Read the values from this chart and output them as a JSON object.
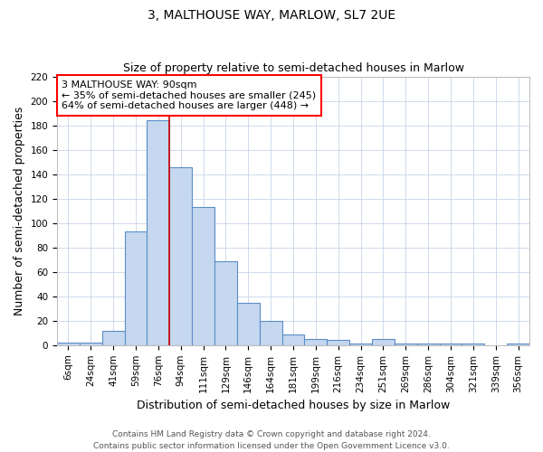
{
  "title": "3, MALTHOUSE WAY, MARLOW, SL7 2UE",
  "subtitle": "Size of property relative to semi-detached houses in Marlow",
  "xlabel": "Distribution of semi-detached houses by size in Marlow",
  "ylabel": "Number of semi-detached properties",
  "categories": [
    "6sqm",
    "24sqm",
    "41sqm",
    "59sqm",
    "76sqm",
    "94sqm",
    "111sqm",
    "129sqm",
    "146sqm",
    "164sqm",
    "181sqm",
    "199sqm",
    "216sqm",
    "234sqm",
    "251sqm",
    "269sqm",
    "286sqm",
    "304sqm",
    "321sqm",
    "339sqm",
    "356sqm"
  ],
  "values": [
    2,
    2,
    12,
    93,
    184,
    146,
    113,
    69,
    35,
    20,
    9,
    5,
    4,
    1,
    5,
    1,
    1,
    1,
    1,
    0,
    1
  ],
  "bar_color": "#c5d8ef",
  "bar_edge_color": "#5b8dc8",
  "highlight_color": "#cc0000",
  "annotation_text_line1": "3 MALTHOUSE WAY: 90sqm",
  "annotation_text_line2": "← 35% of semi-detached houses are smaller (245)",
  "annotation_text_line3": "64% of semi-detached houses are larger (448) →",
  "ylim": [
    0,
    220
  ],
  "yticks": [
    0,
    20,
    40,
    60,
    80,
    100,
    120,
    140,
    160,
    180,
    200,
    220
  ],
  "footer_line1": "Contains HM Land Registry data © Crown copyright and database right 2024.",
  "footer_line2": "Contains public sector information licensed under the Open Government Licence v3.0.",
  "bg_color": "#ffffff",
  "grid_color": "#c8d4e8",
  "title_fontsize": 10,
  "subtitle_fontsize": 9,
  "axis_label_fontsize": 9,
  "tick_fontsize": 7.5,
  "annotation_fontsize": 8,
  "footer_fontsize": 6.5,
  "redline_index": 4.5
}
